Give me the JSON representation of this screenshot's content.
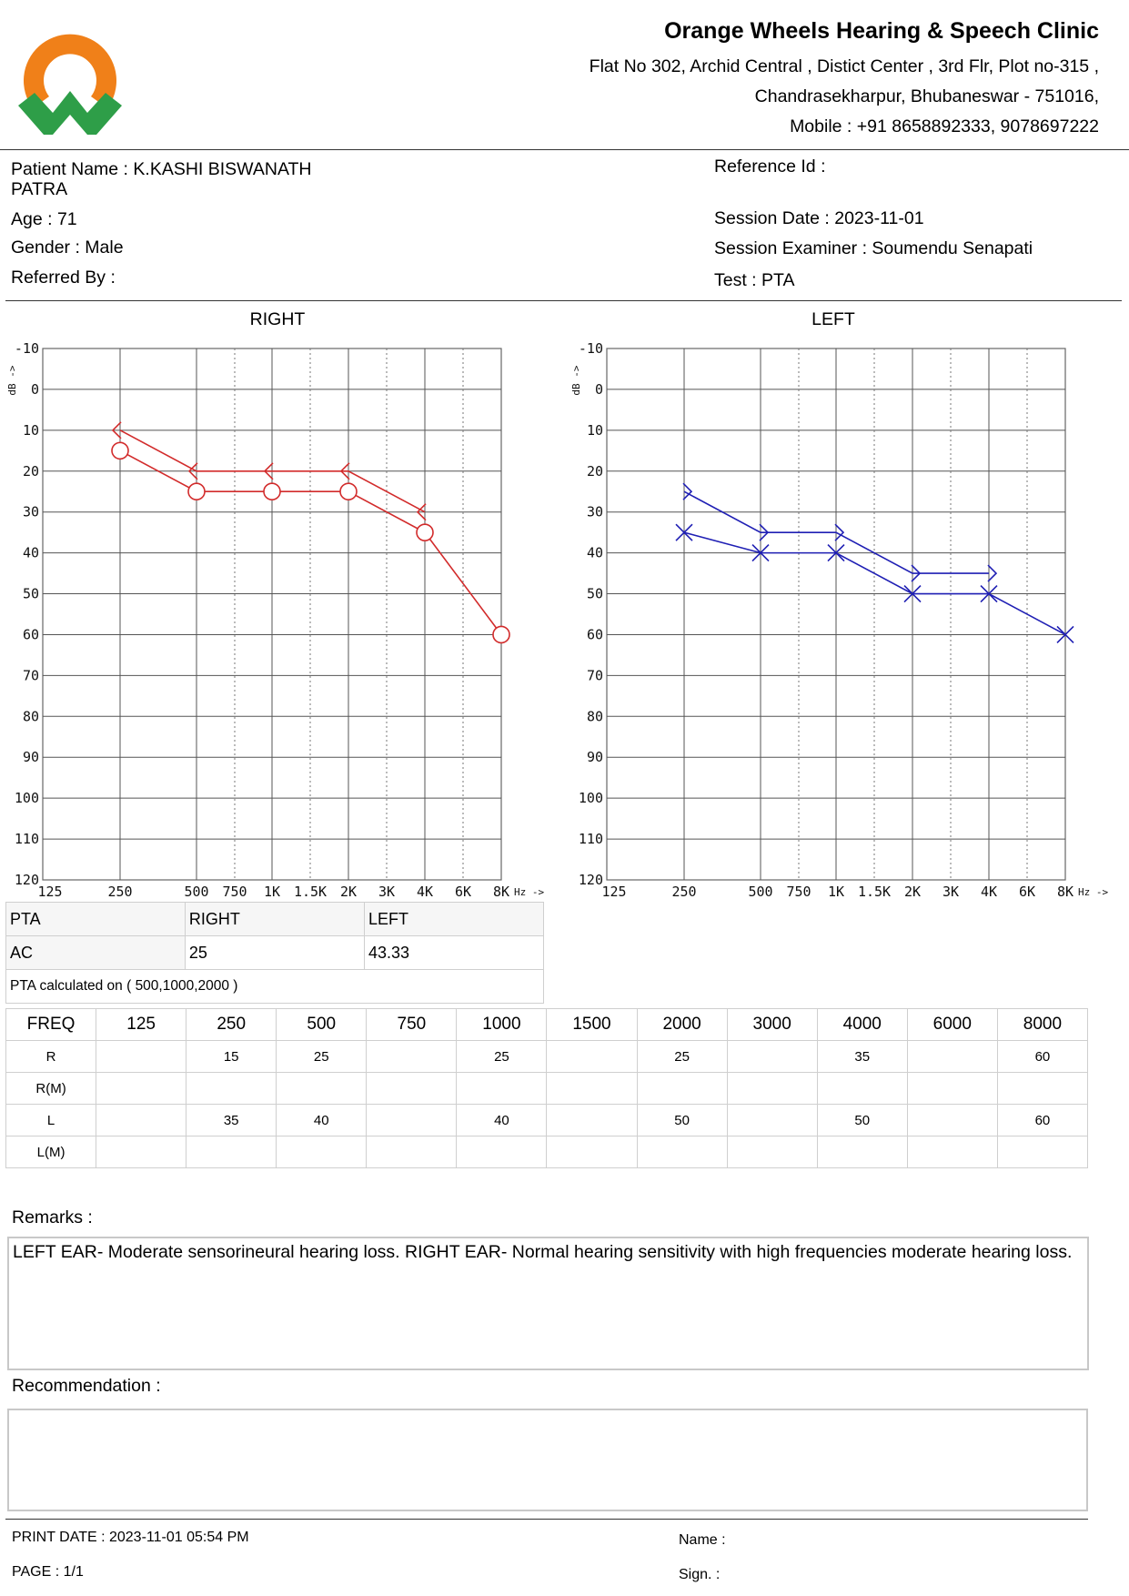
{
  "clinic": {
    "name": "Orange Wheels Hearing & Speech Clinic",
    "address_line1": "Flat No 302, Archid Central , Distict Center , 3rd Flr, Plot no-315 ,",
    "address_line2": "Chandrasekharpur, Bhubaneswar - 751016,",
    "mobile": "Mobile : +91 8658892333, 9078697222",
    "logo_colors": {
      "ring": "#F08019",
      "w": "#2E9E48"
    }
  },
  "patient": {
    "name_line1": "Patient Name : K.KASHI BISWANATH",
    "name_line2": "PATRA",
    "age": "Age : 71",
    "gender": "Gender : Male",
    "referred_by": "Referred By :",
    "reference_id": "Reference Id :",
    "session_date": "Session Date : 2023-11-01",
    "session_examiner": "Session Examiner : Soumendu Senapati",
    "test": "Test : PTA"
  },
  "chart_data": [
    {
      "type": "line",
      "title": "RIGHT",
      "ylabel": "dB ->",
      "xlabel": "Hz ->",
      "y_tick_labels": [
        "-10",
        "0",
        "10",
        "20",
        "30",
        "40",
        "50",
        "60",
        "70",
        "80",
        "90",
        "100",
        "110",
        "120"
      ],
      "ylim": [
        -10,
        120
      ],
      "y_inverted": true,
      "x_tick_labels": [
        "125",
        "250",
        "500",
        "750",
        "1K",
        "1.5K",
        "2K",
        "3K",
        "4K",
        "6K",
        "8K"
      ],
      "grid": true,
      "color": "#D22B2B",
      "series": [
        {
          "marker": "<",
          "x": [
            "250",
            "500",
            "1K",
            "2K",
            "4K"
          ],
          "values": [
            10,
            20,
            20,
            20,
            30
          ]
        },
        {
          "marker": "o",
          "x": [
            "250",
            "500",
            "1K",
            "2K",
            "4K",
            "8K"
          ],
          "values": [
            15,
            25,
            25,
            25,
            35,
            60
          ]
        }
      ]
    },
    {
      "type": "line",
      "title": "LEFT",
      "ylabel": "dB ->",
      "xlabel": "Hz ->",
      "y_tick_labels": [
        "-10",
        "0",
        "10",
        "20",
        "30",
        "40",
        "50",
        "60",
        "70",
        "80",
        "90",
        "100",
        "110",
        "120"
      ],
      "ylim": [
        -10,
        120
      ],
      "y_inverted": true,
      "x_tick_labels": [
        "125",
        "250",
        "500",
        "750",
        "1K",
        "1.5K",
        "2K",
        "3K",
        "4K",
        "6K",
        "8K"
      ],
      "grid": true,
      "color": "#1F1FB4",
      "series": [
        {
          "marker": ">",
          "x": [
            "250",
            "500",
            "1K",
            "2K",
            "4K"
          ],
          "values": [
            25,
            35,
            35,
            45,
            45
          ]
        },
        {
          "marker": "x",
          "x": [
            "250",
            "500",
            "1K",
            "2K",
            "4K",
            "8K"
          ],
          "values": [
            35,
            40,
            40,
            50,
            50,
            60
          ]
        }
      ]
    }
  ],
  "pta": {
    "headers": [
      "PTA",
      "RIGHT",
      "LEFT"
    ],
    "ac": [
      "AC",
      "25",
      "43.33"
    ],
    "note": "PTA calculated on ( 500,1000,2000 )"
  },
  "freq_table": {
    "header": [
      "FREQ",
      "125",
      "250",
      "500",
      "750",
      "1000",
      "1500",
      "2000",
      "3000",
      "4000",
      "6000",
      "8000"
    ],
    "rows": [
      [
        "R",
        "",
        "15",
        "25",
        "",
        "25",
        "",
        "25",
        "",
        "35",
        "",
        "60"
      ],
      [
        "R(M)",
        "",
        "",
        "",
        "",
        "",
        "",
        "",
        "",
        "",
        "",
        ""
      ],
      [
        "L",
        "",
        "35",
        "40",
        "",
        "40",
        "",
        "50",
        "",
        "50",
        "",
        "60"
      ],
      [
        "L(M)",
        "",
        "",
        "",
        "",
        "",
        "",
        "",
        "",
        "",
        "",
        ""
      ]
    ]
  },
  "remarks": {
    "label": "Remarks :",
    "text": "LEFT EAR- Moderate sensorineural hearing loss. RIGHT EAR- Normal hearing sensitivity with high frequencies moderate hearing loss."
  },
  "recommendation": {
    "label": "Recommendation :",
    "text": ""
  },
  "footer": {
    "print_date": "PRINT DATE : 2023-11-01 05:54 PM",
    "page": "PAGE : 1/1",
    "name": "Name :",
    "sign": "Sign. :"
  }
}
